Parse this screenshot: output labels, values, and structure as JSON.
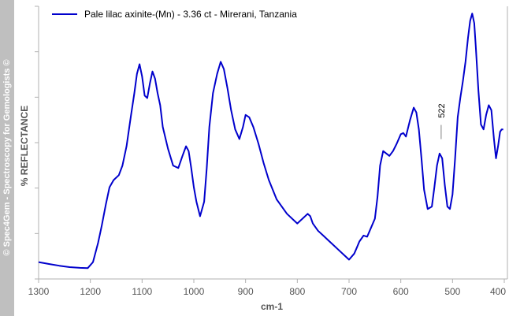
{
  "watermark": "© Spec4Gem - Spectroscopy for Gemologists ©",
  "chart_data": {
    "type": "line",
    "title": "",
    "xlabel": "cm-1",
    "ylabel": "% REFLECTANCE",
    "xlim": [
      1300,
      400
    ],
    "x_reversed": true,
    "y_tick_labels": false,
    "x_ticks": [
      1300,
      1200,
      1100,
      1000,
      900,
      800,
      700,
      600,
      500,
      400
    ],
    "legend_position": "top-left",
    "grid": false,
    "series": [
      {
        "name": "Pale lilac axinite-(Mn) - 3.36 ct - Mirerani, Tanzania",
        "color": "#0000cc",
        "x": [
          1300,
          1280,
          1260,
          1240,
          1220,
          1205,
          1195,
          1185,
          1178,
          1170,
          1163,
          1155,
          1145,
          1138,
          1130,
          1122,
          1115,
          1110,
          1105,
          1100,
          1095,
          1090,
          1085,
          1080,
          1075,
          1070,
          1065,
          1060,
          1050,
          1040,
          1030,
          1022,
          1015,
          1010,
          1005,
          1000,
          995,
          988,
          980,
          975,
          970,
          963,
          955,
          948,
          942,
          935,
          928,
          920,
          912,
          905,
          900,
          893,
          885,
          875,
          865,
          855,
          840,
          820,
          800,
          790,
          780,
          775,
          770,
          760,
          750,
          740,
          730,
          720,
          710,
          700,
          690,
          685,
          680,
          672,
          665,
          658,
          650,
          645,
          640,
          634,
          628,
          622,
          615,
          608,
          600,
          595,
          590,
          582,
          575,
          570,
          565,
          560,
          555,
          548,
          540,
          535,
          530,
          525,
          520,
          515,
          510,
          505,
          500,
          495,
          490,
          485,
          480,
          475,
          470,
          466,
          462,
          458,
          455,
          450,
          445,
          440,
          435,
          430,
          425,
          420,
          416,
          412,
          408,
          405,
          402
        ],
        "y": [
          7,
          6.2,
          5.5,
          4.9,
          4.6,
          4.5,
          7,
          15,
          22,
          31,
          38,
          41,
          43,
          47,
          55,
          67,
          77,
          85,
          89,
          84,
          76,
          75,
          81,
          86,
          83,
          77,
          72,
          63,
          54,
          47,
          46,
          51,
          55,
          53,
          46,
          38,
          32,
          26,
          32,
          46,
          63,
          77,
          85,
          90,
          87,
          79,
          70,
          62,
          58,
          63,
          68,
          67,
          63,
          56,
          48,
          41,
          33,
          27,
          23,
          25,
          27,
          26,
          23,
          20,
          18,
          16,
          14,
          12,
          10,
          8,
          10.5,
          13,
          15.5,
          18,
          17.5,
          21,
          25,
          34,
          47,
          53,
          52,
          51,
          53,
          56,
          60,
          60.5,
          59,
          66,
          71,
          69,
          62,
          50,
          37,
          29,
          30,
          38,
          47,
          52,
          50,
          39,
          30,
          29,
          35,
          50,
          67,
          75,
          82,
          90,
          100,
          107,
          110,
          106,
          96,
          78,
          64,
          62,
          68,
          72,
          70,
          58,
          50,
          55,
          61,
          62,
          62
        ]
      }
    ],
    "annotations": [
      {
        "text": "522",
        "x": 522,
        "y": 56
      }
    ]
  }
}
